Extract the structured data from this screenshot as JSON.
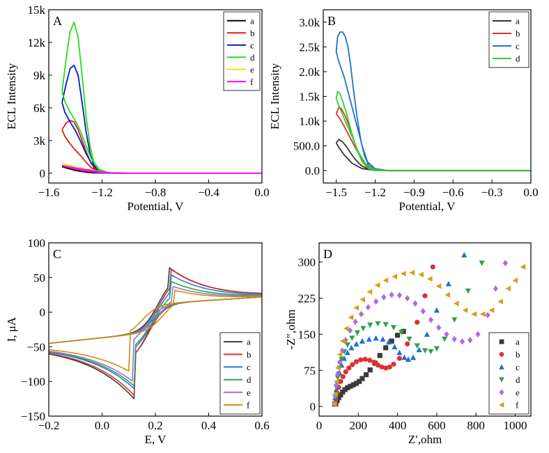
{
  "chart_data": [
    {
      "type": "line",
      "panel": "A",
      "xlabel": "Potential, V",
      "ylabel": "ECL Intensity",
      "xlim": [
        -1.6,
        0.0
      ],
      "ylim": [
        -900,
        15000
      ],
      "xticks": [
        -1.6,
        -1.2,
        -0.8,
        -0.4,
        0.0
      ],
      "xtick_labels": [
        "−1.6",
        "−1.2",
        "−0.8",
        "−0.4",
        "0.0"
      ],
      "yticks": [
        0,
        3000,
        6000,
        9000,
        12000,
        15000
      ],
      "ytick_labels": [
        "0",
        "3k",
        "6k",
        "9k",
        "12k",
        "15k"
      ],
      "legend_position": "top-right",
      "series": [
        {
          "name": "a",
          "color": "#000000",
          "x": [
            -1.5,
            -1.46,
            -1.42,
            -1.38,
            -1.34,
            -1.3,
            -1.26,
            -1.22,
            -1.18,
            -1.1,
            -1.0,
            -0.6,
            0.0,
            -0.6,
            -1.0,
            -1.2,
            -1.3,
            -1.4,
            -1.46,
            -1.5
          ],
          "y": [
            600,
            520,
            430,
            350,
            280,
            220,
            150,
            80,
            30,
            5,
            0,
            0,
            0,
            0,
            0,
            10,
            60,
            250,
            450,
            600
          ]
        },
        {
          "name": "b",
          "color": "#e41a1c",
          "x": [
            -1.5,
            -1.47,
            -1.44,
            -1.41,
            -1.38,
            -1.35,
            -1.32,
            -1.29,
            -1.26,
            -1.22,
            -1.18,
            -1.1,
            -1.0,
            -0.6,
            0.0,
            -0.6,
            -1.0,
            -1.15,
            -1.22,
            -1.28,
            -1.32,
            -1.36,
            -1.4,
            -1.44,
            -1.48,
            -1.5
          ],
          "y": [
            4000,
            4600,
            4850,
            4700,
            4000,
            3000,
            2000,
            1100,
            500,
            150,
            40,
            5,
            0,
            0,
            0,
            0,
            0,
            20,
            150,
            500,
            1000,
            1600,
            2100,
            2700,
            3400,
            4000
          ]
        },
        {
          "name": "c",
          "color": "#0a14c8",
          "x": [
            -1.5,
            -1.47,
            -1.44,
            -1.41,
            -1.38,
            -1.35,
            -1.32,
            -1.29,
            -1.26,
            -1.22,
            -1.18,
            -1.1,
            -1.0,
            -0.6,
            0.0,
            -0.6,
            -1.0,
            -1.15,
            -1.22,
            -1.28,
            -1.32,
            -1.36,
            -1.4,
            -1.44,
            -1.48,
            -1.5
          ],
          "y": [
            6500,
            8200,
            9600,
            9900,
            9000,
            6500,
            3800,
            1800,
            650,
            150,
            30,
            5,
            0,
            0,
            0,
            0,
            0,
            30,
            250,
            900,
            1800,
            2900,
            3900,
            4700,
            5600,
            6500
          ]
        },
        {
          "name": "d",
          "color": "#22e01a",
          "x": [
            -1.5,
            -1.47,
            -1.44,
            -1.41,
            -1.38,
            -1.35,
            -1.32,
            -1.29,
            -1.26,
            -1.22,
            -1.18,
            -1.1,
            -1.0,
            -0.6,
            0.0,
            -0.6,
            -1.0,
            -1.15,
            -1.22,
            -1.28,
            -1.32,
            -1.36,
            -1.4,
            -1.44,
            -1.48,
            -1.5
          ],
          "y": [
            7500,
            10500,
            13000,
            13850,
            12500,
            9000,
            5200,
            2500,
            900,
            220,
            50,
            8,
            0,
            0,
            0,
            0,
            0,
            40,
            350,
            1300,
            2500,
            3800,
            4800,
            5600,
            6600,
            7500
          ]
        },
        {
          "name": "e",
          "color": "#f2e200",
          "x": [
            -1.5,
            -1.44,
            -1.38,
            -1.32,
            -1.26,
            -1.2,
            -1.14,
            -1.05,
            -0.6,
            0.0,
            -0.6,
            -1.0,
            -1.2,
            -1.35,
            -1.45,
            -1.5
          ],
          "y": [
            900,
            700,
            520,
            380,
            250,
            120,
            40,
            5,
            0,
            0,
            0,
            0,
            40,
            300,
            650,
            900
          ]
        },
        {
          "name": "f",
          "color": "#ff00ff",
          "x": [
            -1.5,
            -1.44,
            -1.38,
            -1.32,
            -1.26,
            -1.2,
            -1.14,
            -1.05,
            -0.6,
            0.0,
            -0.6,
            -1.0,
            -1.2,
            -1.35,
            -1.45,
            -1.5
          ],
          "y": [
            700,
            560,
            430,
            320,
            210,
            110,
            40,
            5,
            0,
            0,
            0,
            0,
            30,
            250,
            520,
            700
          ]
        }
      ]
    },
    {
      "type": "line",
      "panel": "B",
      "xlabel": "Potential, V",
      "ylabel": "ECL Intensity",
      "xlim": [
        -1.6,
        0.0
      ],
      "ylim": [
        -250,
        3250
      ],
      "xticks": [
        -1.5,
        -1.2,
        -0.9,
        -0.6,
        -0.3,
        0.0
      ],
      "xtick_labels": [
        "−1.5",
        "−1.2",
        "−0.9",
        "−0.6",
        "−0.3",
        "0.0"
      ],
      "yticks": [
        0,
        500,
        1000,
        1500,
        2000,
        2500,
        3000
      ],
      "ytick_labels": [
        "0.0",
        "500.0",
        "1.0k",
        "1.5k",
        "2.0k",
        "2.5k",
        "3.0k"
      ],
      "legend_position": "top-right",
      "series": [
        {
          "name": "a",
          "color": "#333333",
          "x": [
            -1.5,
            -1.48,
            -1.45,
            -1.42,
            -1.39,
            -1.36,
            -1.33,
            -1.3,
            -1.26,
            -1.2,
            -1.1,
            -0.9,
            0.0,
            -0.9,
            -1.1,
            -1.2,
            -1.3,
            -1.38,
            -1.44,
            -1.48,
            -1.5
          ],
          "y": [
            560,
            630,
            580,
            480,
            360,
            250,
            160,
            90,
            40,
            10,
            2,
            0,
            0,
            0,
            0,
            5,
            40,
            150,
            320,
            470,
            560
          ]
        },
        {
          "name": "b",
          "color": "#e03030",
          "x": [
            -1.5,
            -1.48,
            -1.46,
            -1.43,
            -1.4,
            -1.37,
            -1.34,
            -1.31,
            -1.28,
            -1.24,
            -1.2,
            -1.1,
            -0.9,
            0.0,
            -0.9,
            -1.1,
            -1.2,
            -1.28,
            -1.34,
            -1.4,
            -1.45,
            -1.48,
            -1.5
          ],
          "y": [
            1150,
            1280,
            1250,
            1100,
            900,
            650,
            420,
            240,
            120,
            40,
            12,
            2,
            0,
            0,
            0,
            0,
            20,
            150,
            400,
            700,
            950,
            1080,
            1150
          ]
        },
        {
          "name": "c",
          "color": "#1f6fd1",
          "x": [
            -1.5,
            -1.49,
            -1.47,
            -1.45,
            -1.43,
            -1.41,
            -1.39,
            -1.37,
            -1.34,
            -1.31,
            -1.28,
            -1.25,
            -1.2,
            -1.1,
            -0.9,
            0.0,
            -0.9,
            -1.1,
            -1.2,
            -1.26,
            -1.3,
            -1.35,
            -1.4,
            -1.44,
            -1.48,
            -1.5
          ],
          "y": [
            2400,
            2700,
            2800,
            2800,
            2700,
            2500,
            2150,
            1700,
            1100,
            600,
            280,
            110,
            25,
            3,
            0,
            0,
            0,
            0,
            40,
            180,
            500,
            1000,
            1500,
            1900,
            2200,
            2400
          ]
        },
        {
          "name": "d",
          "color": "#2fd12f",
          "x": [
            -1.5,
            -1.49,
            -1.47,
            -1.45,
            -1.42,
            -1.39,
            -1.36,
            -1.33,
            -1.3,
            -1.27,
            -1.24,
            -1.2,
            -1.1,
            -0.9,
            0.0,
            -0.9,
            -1.1,
            -1.2,
            -1.27,
            -1.33,
            -1.38,
            -1.43,
            -1.47,
            -1.5
          ],
          "y": [
            1450,
            1600,
            1550,
            1400,
            1150,
            850,
            580,
            350,
            180,
            80,
            30,
            8,
            1,
            0,
            0,
            0,
            0,
            20,
            120,
            380,
            700,
            1000,
            1250,
            1450
          ]
        }
      ]
    },
    {
      "type": "line",
      "panel": "C",
      "xlabel": "E, V",
      "ylabel": "I, μA",
      "xlim": [
        -0.2,
        0.6
      ],
      "ylim": [
        -150,
        100
      ],
      "xticks": [
        -0.2,
        0.0,
        0.2,
        0.4,
        0.6
      ],
      "xtick_labels": [
        "−0.2",
        "0.0",
        "0.2",
        "0.4",
        "0.6"
      ],
      "yticks": [
        -150,
        -100,
        -50,
        0,
        50,
        100
      ],
      "ytick_labels": [
        "−150",
        "−100",
        "−50",
        "0",
        "50",
        "100"
      ],
      "legend_position": "bottom-right",
      "series": [
        {
          "name": "a",
          "color": "#3a3a3a",
          "ipa": 75,
          "ipc": -125,
          "epa": 0.25,
          "epc": 0.12
        },
        {
          "name": "b",
          "color": "#d03535",
          "ipa": 73,
          "ipc": -122,
          "epa": 0.255,
          "epc": 0.125
        },
        {
          "name": "c",
          "color": "#2a7cd4",
          "ipa": 65,
          "ipc": -112,
          "epa": 0.255,
          "epc": 0.125
        },
        {
          "name": "d",
          "color": "#2ea04a",
          "ipa": 55,
          "ipc": -108,
          "epa": 0.255,
          "epc": 0.125
        },
        {
          "name": "e",
          "color": "#9a70d8",
          "ipa": 48,
          "ipc": -100,
          "epa": 0.26,
          "epc": 0.115
        },
        {
          "name": "f",
          "color": "#c8900a",
          "ipa": 42,
          "ipc": -85,
          "epa": 0.27,
          "epc": 0.1
        }
      ]
    },
    {
      "type": "scatter",
      "panel": "D",
      "xlabel": "Z′,ohm",
      "ylabel": "-Z″,ohm",
      "xlim": [
        0,
        1080
      ],
      "ylim": [
        -20,
        340
      ],
      "xticks": [
        0,
        200,
        400,
        600,
        800,
        1000
      ],
      "xtick_labels": [
        "0",
        "200",
        "400",
        "600",
        "800",
        "1000"
      ],
      "yticks": [
        0,
        75,
        150,
        225,
        300
      ],
      "ytick_labels": [
        "0",
        "75",
        "150",
        "225",
        "300"
      ],
      "legend_position": "bottom-right",
      "series": [
        {
          "name": "a",
          "color": "#3a3a3a",
          "marker": "square",
          "x": [
            85,
            92,
            100,
            110,
            120,
            132,
            145,
            160,
            175,
            190,
            205,
            220,
            240,
            260,
            285,
            310,
            340,
            370,
            400,
            430
          ],
          "y": [
            5,
            12,
            18,
            24,
            30,
            35,
            39,
            42,
            45,
            48,
            52,
            58,
            66,
            76,
            90,
            106,
            122,
            136,
            148,
            156
          ]
        },
        {
          "name": "b",
          "color": "#e03030",
          "marker": "circle",
          "x": [
            80,
            85,
            92,
            100,
            110,
            122,
            136,
            152,
            170,
            190,
            212,
            235,
            258,
            280,
            300,
            320,
            340,
            360,
            380,
            410,
            450,
            500,
            540,
            580
          ],
          "y": [
            5,
            15,
            28,
            40,
            52,
            62,
            72,
            80,
            87,
            93,
            97,
            98,
            96,
            92,
            86,
            82,
            80,
            82,
            88,
            100,
            130,
            175,
            230,
            290
          ]
        },
        {
          "name": "c",
          "color": "#1f6fd1",
          "marker": "triangle-up",
          "x": [
            78,
            82,
            88,
            95,
            104,
            115,
            128,
            145,
            165,
            190,
            220,
            255,
            290,
            325,
            355,
            385,
            410,
            435,
            455,
            480,
            510,
            550,
            600,
            660,
            740
          ],
          "y": [
            5,
            18,
            35,
            52,
            70,
            86,
            100,
            112,
            122,
            130,
            136,
            140,
            142,
            140,
            134,
            124,
            112,
            102,
            98,
            102,
            118,
            150,
            200,
            255,
            315
          ]
        },
        {
          "name": "d",
          "color": "#2ea04a",
          "marker": "triangle-down",
          "x": [
            78,
            82,
            88,
            95,
            104,
            115,
            128,
            145,
            168,
            195,
            225,
            260,
            300,
            340,
            380,
            420,
            460,
            500,
            540,
            570,
            600,
            640,
            690,
            760,
            830
          ],
          "y": [
            5,
            20,
            40,
            60,
            80,
            98,
            114,
            128,
            142,
            153,
            162,
            169,
            172,
            170,
            164,
            154,
            140,
            126,
            116,
            114,
            120,
            140,
            180,
            240,
            298
          ]
        },
        {
          "name": "e",
          "color": "#b069e0",
          "marker": "diamond",
          "x": [
            78,
            82,
            88,
            95,
            105,
            118,
            135,
            158,
            185,
            215,
            250,
            290,
            330,
            370,
            410,
            450,
            490,
            530,
            570,
            610,
            650,
            690,
            730,
            770,
            810,
            860,
            900,
            950
          ],
          "y": [
            5,
            22,
            44,
            68,
            92,
            116,
            138,
            158,
            176,
            192,
            206,
            218,
            227,
            232,
            231,
            225,
            214,
            198,
            180,
            164,
            150,
            140,
            135,
            138,
            150,
            190,
            245,
            298
          ]
        },
        {
          "name": "f",
          "color": "#d4a017",
          "marker": "triangle-left",
          "x": [
            78,
            82,
            88,
            96,
            106,
            120,
            138,
            162,
            190,
            222,
            258,
            298,
            340,
            385,
            430,
            475,
            520,
            565,
            610,
            655,
            700,
            745,
            790,
            835,
            880,
            925,
            965,
            1000,
            1040
          ],
          "y": [
            5,
            25,
            52,
            80,
            108,
            136,
            162,
            185,
            205,
            222,
            238,
            252,
            262,
            270,
            276,
            278,
            274,
            265,
            250,
            232,
            214,
            200,
            192,
            192,
            200,
            218,
            245,
            262,
            290
          ]
        }
      ]
    }
  ]
}
